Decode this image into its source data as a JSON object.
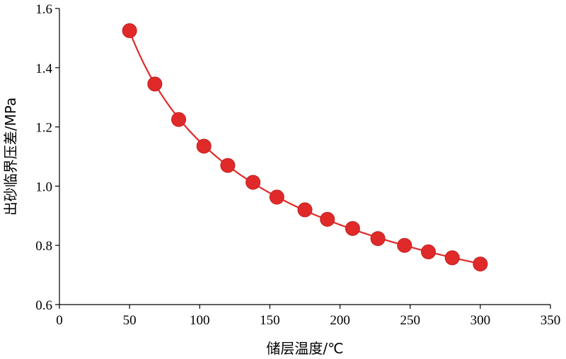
{
  "chart_data": {
    "type": "scatter",
    "xlabel": "储层温度/℃",
    "ylabel": "出砂临界压差/MPa",
    "xlim": [
      0,
      350
    ],
    "ylim": [
      0.6,
      1.6
    ],
    "x_ticks": [
      "0",
      "50",
      "100",
      "150",
      "200",
      "250",
      "300",
      "350"
    ],
    "y_ticks": [
      "0.6",
      "0.8",
      "1.0",
      "1.2",
      "1.4",
      "1.6"
    ],
    "grid": false,
    "series": [
      {
        "points": [
          [
            50,
            1.525
          ],
          [
            68,
            1.345
          ],
          [
            85,
            1.225
          ],
          [
            103,
            1.135
          ],
          [
            120,
            1.07
          ],
          [
            138,
            1.013
          ],
          [
            155,
            0.963
          ],
          [
            175,
            0.92
          ],
          [
            191,
            0.888
          ],
          [
            209,
            0.857
          ],
          [
            227,
            0.823
          ],
          [
            246,
            0.8
          ],
          [
            263,
            0.778
          ],
          [
            280,
            0.758
          ],
          [
            300,
            0.737
          ]
        ],
        "marker_color": "#e02a2a",
        "trendline": true,
        "trendline_color": "#e02a2a"
      }
    ]
  }
}
